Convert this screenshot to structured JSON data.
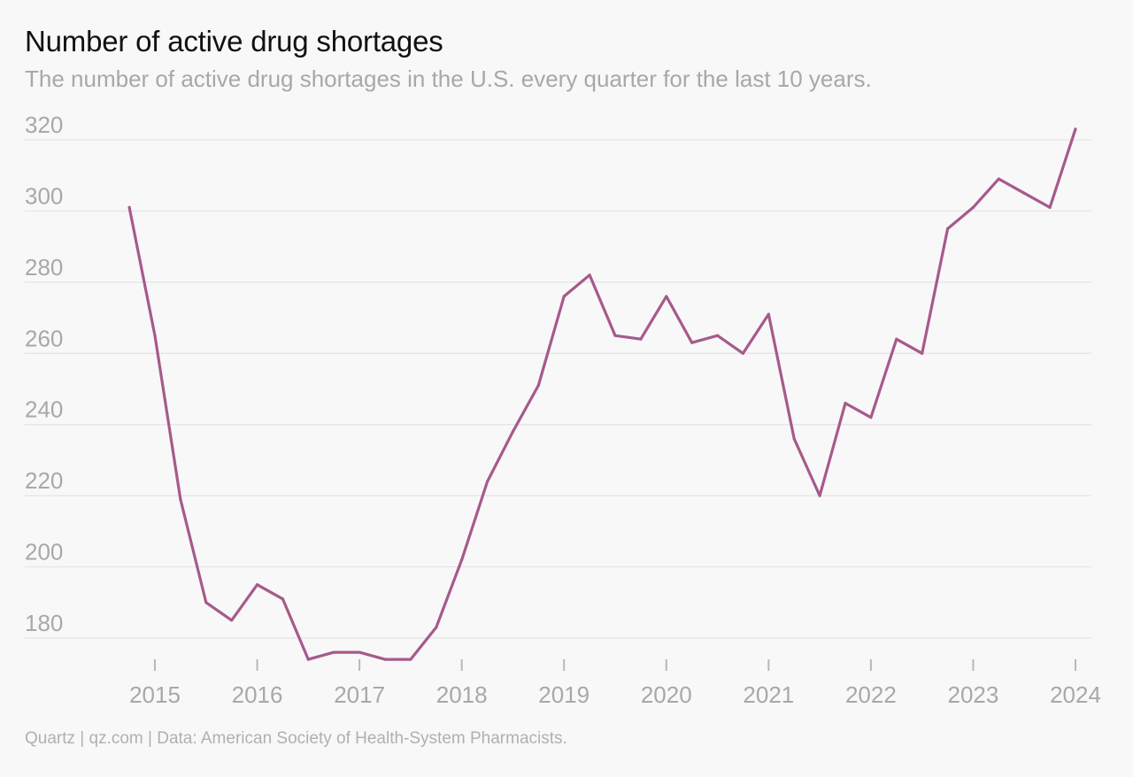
{
  "header": {
    "title": "Number of active drug shortages",
    "subtitle": "The number of active drug shortages in the U.S. every quarter for the last 10 years."
  },
  "footer": {
    "source": "Quartz | qz.com | Data: American Society of Health-System Pharmacists."
  },
  "colors": {
    "line": "#a65a8b",
    "background": "#f8f8f8",
    "grid": "#e4e4e4",
    "muted_text": "#a8a8a8"
  },
  "chart_data": {
    "type": "line",
    "title": "Number of active drug shortages",
    "subtitle": "The number of active drug shortages in the U.S. every quarter for the last 10 years.",
    "xlabel": "",
    "ylabel": "",
    "ylim": [
      175,
      322
    ],
    "xlim": [
      2014.5,
      2024.1
    ],
    "yticks": [
      180,
      200,
      220,
      240,
      260,
      280,
      300,
      320
    ],
    "xticks": [
      2015,
      2016,
      2017,
      2018,
      2019,
      2020,
      2021,
      2022,
      2023,
      2024
    ],
    "grid": true,
    "legend": "none",
    "series": [
      {
        "color": "#a65a8b",
        "x": [
          2014.75,
          2015.0,
          2015.25,
          2015.5,
          2015.75,
          2016.0,
          2016.25,
          2016.5,
          2016.75,
          2017.0,
          2017.25,
          2017.5,
          2017.75,
          2018.0,
          2018.25,
          2018.5,
          2018.75,
          2019.0,
          2019.25,
          2019.5,
          2019.75,
          2020.0,
          2020.25,
          2020.5,
          2020.75,
          2021.0,
          2021.25,
          2021.5,
          2021.75,
          2022.0,
          2022.25,
          2022.5,
          2022.75,
          2023.0,
          2023.25,
          2023.5,
          2023.75,
          2024.0
        ],
        "values": [
          301,
          265,
          219,
          190,
          185,
          195,
          191,
          174,
          176,
          176,
          174,
          174,
          183,
          202,
          224,
          238,
          251,
          276,
          282,
          265,
          264,
          276,
          263,
          265,
          260,
          271,
          236,
          220,
          246,
          242,
          264,
          260,
          295,
          301,
          309,
          305,
          301,
          323
        ]
      }
    ]
  }
}
